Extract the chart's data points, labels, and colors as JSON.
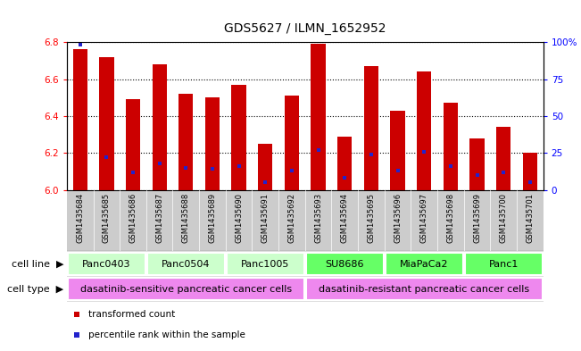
{
  "title": "GDS5627 / ILMN_1652952",
  "samples": [
    "GSM1435684",
    "GSM1435685",
    "GSM1435686",
    "GSM1435687",
    "GSM1435688",
    "GSM1435689",
    "GSM1435690",
    "GSM1435691",
    "GSM1435692",
    "GSM1435693",
    "GSM1435694",
    "GSM1435695",
    "GSM1435696",
    "GSM1435697",
    "GSM1435698",
    "GSM1435699",
    "GSM1435700",
    "GSM1435701"
  ],
  "transformed_count": [
    6.76,
    6.72,
    6.49,
    6.68,
    6.52,
    6.5,
    6.57,
    6.25,
    6.51,
    6.79,
    6.29,
    6.67,
    6.43,
    6.64,
    6.47,
    6.28,
    6.34,
    6.2
  ],
  "percentile_rank": [
    98,
    22,
    12,
    18,
    15,
    14,
    16,
    5,
    13,
    27,
    8,
    24,
    13,
    26,
    16,
    10,
    12,
    5
  ],
  "bar_color": "#cc0000",
  "blue_color": "#2222cc",
  "y_min": 6.0,
  "y_max": 6.8,
  "y_ticks": [
    6.0,
    6.2,
    6.4,
    6.6,
    6.8
  ],
  "y_right_ticks": [
    0,
    25,
    50,
    75,
    100
  ],
  "y_right_labels": [
    "0",
    "25",
    "50",
    "75",
    "100%"
  ],
  "cell_lines": [
    {
      "label": "Panc0403",
      "start": 0,
      "end": 3,
      "color": "#ccffcc"
    },
    {
      "label": "Panc0504",
      "start": 3,
      "end": 6,
      "color": "#ccffcc"
    },
    {
      "label": "Panc1005",
      "start": 6,
      "end": 9,
      "color": "#ccffcc"
    },
    {
      "label": "SU8686",
      "start": 9,
      "end": 12,
      "color": "#66ff66"
    },
    {
      "label": "MiaPaCa2",
      "start": 12,
      "end": 15,
      "color": "#66ff66"
    },
    {
      "label": "Panc1",
      "start": 15,
      "end": 18,
      "color": "#66ff66"
    }
  ],
  "cell_types": [
    {
      "label": "dasatinib-sensitive pancreatic cancer cells",
      "start": 0,
      "end": 9,
      "color": "#ee88ee"
    },
    {
      "label": "dasatinib-resistant pancreatic cancer cells",
      "start": 9,
      "end": 18,
      "color": "#ee88ee"
    }
  ],
  "legend_items": [
    {
      "color": "#cc0000",
      "label": "transformed count"
    },
    {
      "color": "#2222cc",
      "label": "percentile rank within the sample"
    }
  ],
  "bg_color": "#ffffff",
  "sample_bg": "#cccccc",
  "bar_width": 0.55,
  "title_fontsize": 10,
  "tick_fontsize": 7.5,
  "sample_fontsize": 6,
  "cell_line_fontsize": 8,
  "cell_type_fontsize": 8,
  "legend_fontsize": 7.5
}
